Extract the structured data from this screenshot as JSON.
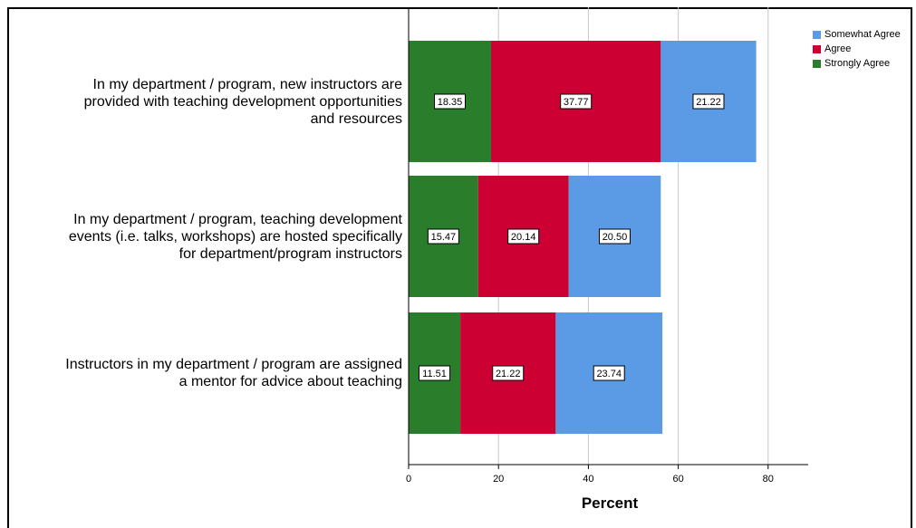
{
  "chart_data": {
    "type": "bar",
    "orientation": "horizontal",
    "stacked": true,
    "categories": [
      "In my department / program, new instructors are provided with teaching development opportunities and resources",
      "In my department / program, teaching development events (i.e. talks, workshops) are hosted specifically for department/program instructors",
      "Instructors in my department / program are assigned a mentor for advice about teaching"
    ],
    "category_lines": [
      [
        "In my department / program, new instructors are",
        "provided with teaching development opportunities",
        "and resources"
      ],
      [
        "In my department / program, teaching development",
        "events (i.e. talks, workshops) are hosted specifically",
        "for department/program instructors"
      ],
      [
        "Instructors in my department / program are assigned",
        "a mentor for advice about teaching"
      ]
    ],
    "series": [
      {
        "name": "Strongly Agree",
        "color": "#2a7d2a",
        "values": [
          18.35,
          15.47,
          11.51
        ],
        "labels": [
          "18.35",
          "15.47",
          "11.51"
        ]
      },
      {
        "name": "Agree",
        "color": "#cc0033",
        "values": [
          37.77,
          20.14,
          21.22
        ],
        "labels": [
          "37.77",
          "20.14",
          "21.22"
        ]
      },
      {
        "name": "Somewhat Agree",
        "color": "#5b9be6",
        "values": [
          21.22,
          20.5,
          23.74
        ],
        "labels": [
          "21.22",
          "20.50",
          "23.74"
        ]
      }
    ],
    "legend_order": [
      "Somewhat Agree",
      "Agree",
      "Strongly Agree"
    ],
    "xlabel": "Percent",
    "xlim": [
      0,
      88
    ],
    "xticks": [
      0,
      20,
      40,
      60,
      80
    ],
    "grid": "vertical",
    "legend": "top-right"
  }
}
